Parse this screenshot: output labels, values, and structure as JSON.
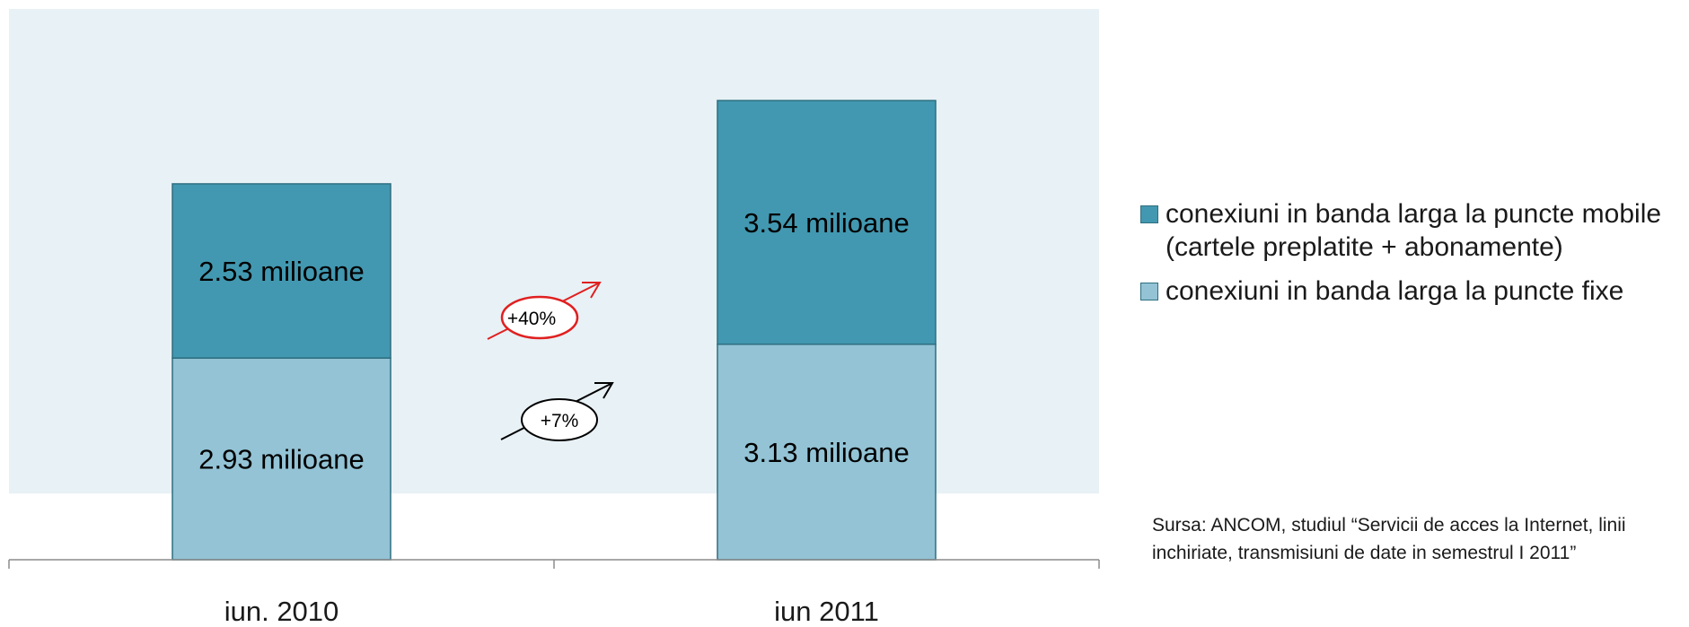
{
  "chart_data": {
    "type": "bar",
    "stacked": true,
    "categories": [
      "iun. 2010",
      "iun 2011"
    ],
    "series": [
      {
        "name": "conexiuni in banda larga la puncte fixe",
        "values": [
          2.93,
          3.13
        ],
        "labels": [
          "2.93 milioane",
          "3.13 milioane"
        ],
        "color": "#93c3d5"
      },
      {
        "name": "conexiuni in banda larga la puncte mobile (cartele preplatite + abonamente)",
        "values": [
          2.53,
          3.54
        ],
        "labels": [
          "2.53 milioane",
          "3.54 milioane"
        ],
        "color": "#4298b0"
      }
    ],
    "ylim": [
      0,
      8
    ],
    "legend_position": "right",
    "grid": false,
    "annotations": [
      {
        "text": "+40%",
        "color": "#e02020",
        "refers_to": "mobile"
      },
      {
        "text": "+7%",
        "color": "#000000",
        "refers_to": "fixe"
      }
    ]
  },
  "source_text": "Sursa: ANCOM, studiul “Servicii de acces la Internet, linii inchiriate, transmisiuni de date in semestrul I 2011”"
}
